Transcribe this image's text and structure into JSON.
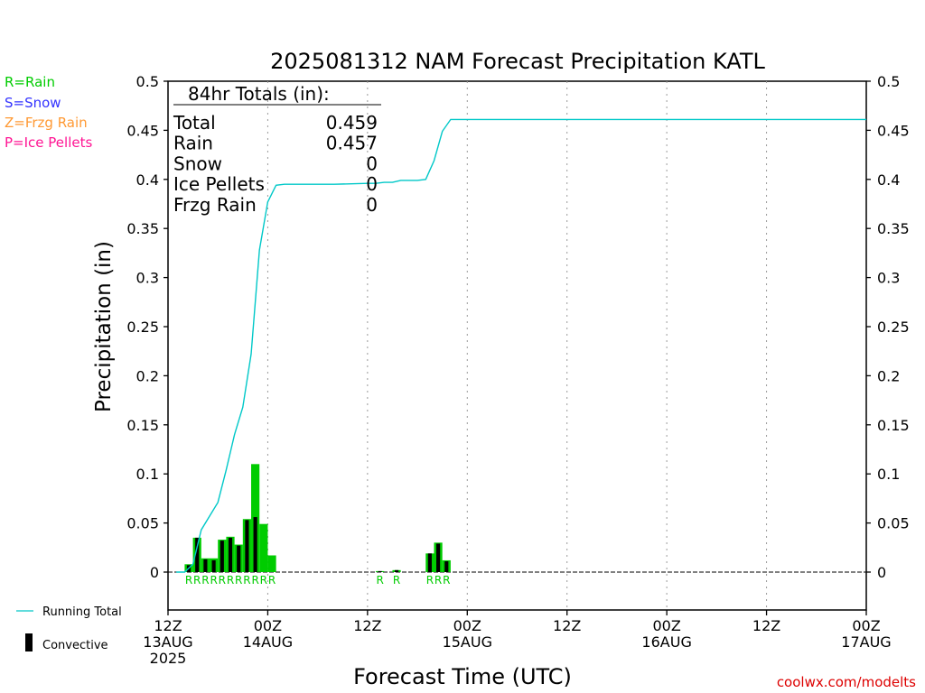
{
  "title": "2025081312 NAM Forecast Precipitation KATL",
  "ylabel": "Precipitation (in)",
  "xlabel": "Forecast Time (UTC)",
  "credit": "coolwx.com/modelts",
  "type_legend": [
    {
      "text": "R=Rain",
      "color": "#00cc00"
    },
    {
      "text": "S=Snow",
      "color": "#3333ff"
    },
    {
      "text": "Z=Frzg Rain",
      "color": "#ff9933"
    },
    {
      "text": "P=Ice Pellets",
      "color": "#ff1493"
    }
  ],
  "series_legend": {
    "running_total": "Running Total",
    "convective": "Convective"
  },
  "totals": {
    "header": "84hr Totals (in):",
    "rows": [
      {
        "label": "Total",
        "value": "0.459"
      },
      {
        "label": "Rain",
        "value": "0.457"
      },
      {
        "label": "Snow",
        "value": "0"
      },
      {
        "label": "Ice Pellets",
        "value": "0"
      },
      {
        "label": "Frzg Rain",
        "value": "0"
      }
    ]
  },
  "colors": {
    "precip_bar": "#00cc00",
    "convective_bar": "#000000",
    "running_total": "#00c8c8",
    "rain_marker": "#00cc00"
  },
  "chart_data": {
    "type": "bar",
    "x_unit": "forecast hour (0 = 12Z 13AUG 2025)",
    "xlim": [
      0,
      84
    ],
    "ylim": [
      0,
      0.5
    ],
    "yticks": [
      0,
      0.05,
      0.1,
      0.15,
      0.2,
      0.25,
      0.3,
      0.35,
      0.4,
      0.45,
      0.5
    ],
    "ytick_labels": [
      "0",
      "0.05",
      "0.1",
      "0.15",
      "0.2",
      "0.25",
      "0.3",
      "0.35",
      "0.4",
      "0.45",
      "0.5"
    ],
    "xticks": [
      {
        "hour": 0,
        "lines": [
          "12Z",
          "13AUG",
          "2025"
        ]
      },
      {
        "hour": 12,
        "lines": [
          "00Z",
          "14AUG"
        ]
      },
      {
        "hour": 24,
        "lines": [
          "12Z"
        ]
      },
      {
        "hour": 36,
        "lines": [
          "00Z",
          "15AUG"
        ]
      },
      {
        "hour": 48,
        "lines": [
          "12Z"
        ]
      },
      {
        "hour": 60,
        "lines": [
          "00Z",
          "16AUG"
        ]
      },
      {
        "hour": 72,
        "lines": [
          "12Z"
        ]
      },
      {
        "hour": 84,
        "lines": [
          "00Z",
          "17AUG"
        ]
      }
    ],
    "grid": "vertical dotted at 12-hour ticks",
    "hourly_precip": [
      {
        "hour": 3,
        "total": 0.008,
        "convective": 0.007
      },
      {
        "hour": 4,
        "total": 0.035,
        "convective": 0.035
      },
      {
        "hour": 5,
        "total": 0.014,
        "convective": 0.013
      },
      {
        "hour": 6,
        "total": 0.014,
        "convective": 0.012
      },
      {
        "hour": 7,
        "total": 0.033,
        "convective": 0.032
      },
      {
        "hour": 8,
        "total": 0.036,
        "convective": 0.035
      },
      {
        "hour": 9,
        "total": 0.028,
        "convective": 0.027
      },
      {
        "hour": 10,
        "total": 0.054,
        "convective": 0.053
      },
      {
        "hour": 11,
        "total": 0.11,
        "convective": 0.056
      },
      {
        "hour": 12,
        "total": 0.049,
        "convective": 0.0
      },
      {
        "hour": 13,
        "total": 0.017,
        "convective": 0.0
      },
      {
        "hour": 26,
        "total": 0.001,
        "convective": 0.001
      },
      {
        "hour": 28,
        "total": 0.002,
        "convective": 0.002
      },
      {
        "hour": 32,
        "total": 0.019,
        "convective": 0.019
      },
      {
        "hour": 33,
        "total": 0.03,
        "convective": 0.029
      },
      {
        "hour": 34,
        "total": 0.012,
        "convective": 0.011
      }
    ],
    "precip_type_markers": [
      {
        "hour": 3,
        "label": "R"
      },
      {
        "hour": 4,
        "label": "R"
      },
      {
        "hour": 5,
        "label": "R"
      },
      {
        "hour": 6,
        "label": "R"
      },
      {
        "hour": 7,
        "label": "R"
      },
      {
        "hour": 8,
        "label": "R"
      },
      {
        "hour": 9,
        "label": "R"
      },
      {
        "hour": 10,
        "label": "R"
      },
      {
        "hour": 11,
        "label": "R"
      },
      {
        "hour": 12,
        "label": "R"
      },
      {
        "hour": 13,
        "label": "R"
      },
      {
        "hour": 26,
        "label": "R"
      },
      {
        "hour": 28,
        "label": "R"
      },
      {
        "hour": 32,
        "label": "R"
      },
      {
        "hour": 33,
        "label": "R"
      },
      {
        "hour": 34,
        "label": "R"
      }
    ],
    "running_total": [
      [
        1,
        0.0
      ],
      [
        2,
        0.0
      ],
      [
        3,
        0.008
      ],
      [
        4,
        0.043
      ],
      [
        5,
        0.057
      ],
      [
        6,
        0.071
      ],
      [
        7,
        0.104
      ],
      [
        8,
        0.14
      ],
      [
        9,
        0.168
      ],
      [
        10,
        0.222
      ],
      [
        11,
        0.328
      ],
      [
        12,
        0.377
      ],
      [
        13,
        0.394
      ],
      [
        14,
        0.395
      ],
      [
        20,
        0.395
      ],
      [
        24,
        0.396
      ],
      [
        25,
        0.396
      ],
      [
        26,
        0.397
      ],
      [
        27,
        0.397
      ],
      [
        28,
        0.399
      ],
      [
        30,
        0.399
      ],
      [
        31,
        0.4
      ],
      [
        32,
        0.419
      ],
      [
        33,
        0.449
      ],
      [
        34,
        0.461
      ],
      [
        84,
        0.461
      ]
    ]
  }
}
